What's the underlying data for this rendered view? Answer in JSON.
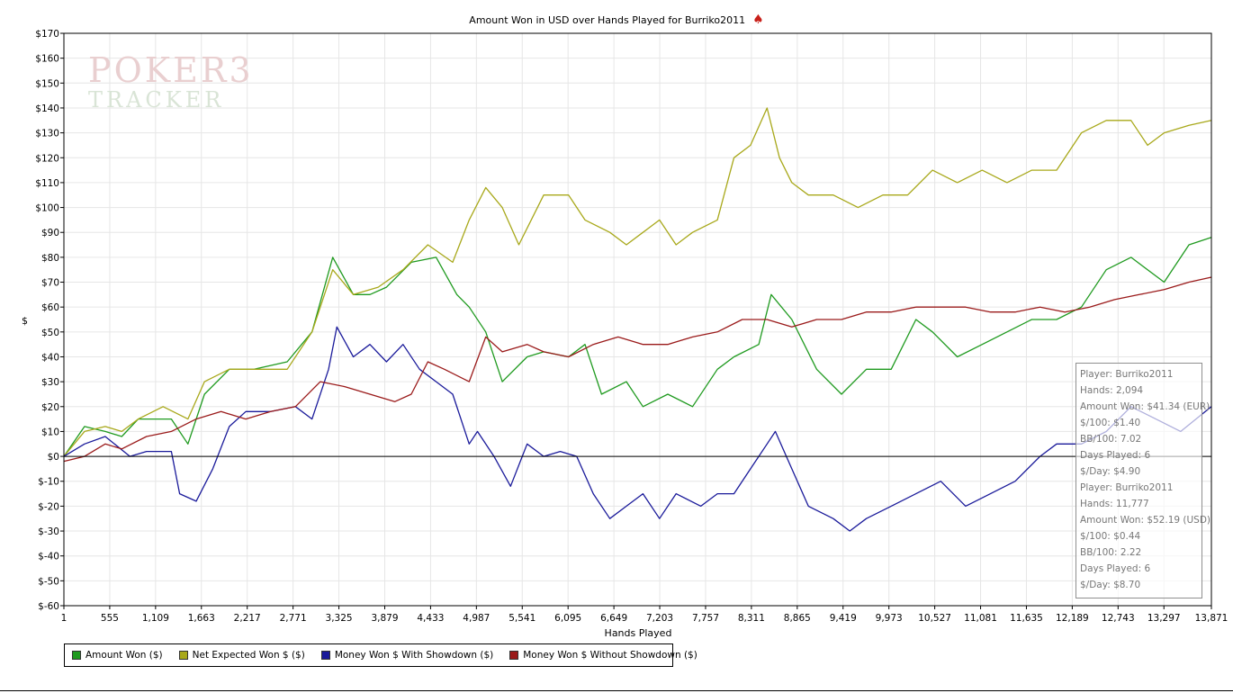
{
  "title": "Amount Won in USD over Hands Played for Burriko2011",
  "logo": {
    "line1": "POKER3",
    "line2": "TRACKER"
  },
  "chart_data": {
    "type": "line",
    "title": "Amount Won in USD over Hands Played for Burriko2011",
    "xlabel": "Hands Played",
    "ylabel": "$",
    "xlim": [
      1,
      13871
    ],
    "ylim": [
      -60,
      170
    ],
    "x_ticks": [
      1,
      555,
      1109,
      1663,
      2217,
      2771,
      3325,
      3879,
      4433,
      4987,
      5541,
      6095,
      6649,
      7203,
      7757,
      8311,
      8865,
      9419,
      9973,
      10527,
      11081,
      11635,
      12189,
      12743,
      13297,
      13871
    ],
    "x_tick_labels": [
      "1",
      "555",
      "1,109",
      "1,663",
      "2,217",
      "2,771",
      "3,325",
      "3,879",
      "4,433",
      "4,987",
      "5,541",
      "6,095",
      "6,649",
      "7,203",
      "7,757",
      "8,311",
      "8,865",
      "9,419",
      "9,973",
      "10,527",
      "11,081",
      "11,635",
      "12,189",
      "12,743",
      "13,297",
      "13,871"
    ],
    "y_ticks": [
      -60,
      -50,
      -40,
      -30,
      -20,
      -10,
      0,
      10,
      20,
      30,
      40,
      50,
      60,
      70,
      80,
      90,
      100,
      110,
      120,
      130,
      140,
      150,
      160,
      170
    ],
    "y_tick_labels": [
      "$-60",
      "$-50",
      "$-40",
      "$-30",
      "$-20",
      "$-10",
      "$0",
      "$10",
      "$20",
      "$30",
      "$40",
      "$50",
      "$60",
      "$70",
      "$80",
      "$90",
      "$100",
      "$110",
      "$120",
      "$130",
      "$140",
      "$150",
      "$160",
      "$170"
    ],
    "grid": true,
    "legend_position": "bottom-left",
    "series": [
      {
        "name": "Amount Won ($)",
        "color": "#1f9a1f",
        "x": [
          1,
          250,
          500,
          700,
          900,
          1300,
          1500,
          1700,
          2000,
          2300,
          2700,
          3000,
          3250,
          3500,
          3700,
          3900,
          4200,
          4500,
          4750,
          4900,
          5100,
          5300,
          5600,
          5800,
          6100,
          6300,
          6500,
          6800,
          7000,
          7300,
          7600,
          7900,
          8100,
          8400,
          8550,
          8800,
          9100,
          9400,
          9700,
          10000,
          10300,
          10500,
          10800,
          11100,
          11400,
          11700,
          12000,
          12300,
          12600,
          12900,
          13300,
          13600,
          13871
        ],
        "y": [
          0,
          12,
          10,
          8,
          15,
          15,
          5,
          25,
          35,
          35,
          38,
          50,
          80,
          65,
          65,
          68,
          78,
          80,
          65,
          60,
          50,
          30,
          40,
          42,
          40,
          45,
          25,
          30,
          20,
          25,
          20,
          35,
          40,
          45,
          65,
          55,
          35,
          25,
          35,
          35,
          55,
          50,
          40,
          45,
          50,
          55,
          55,
          60,
          75,
          80,
          70,
          85,
          88
        ]
      },
      {
        "name": "Net Expected Won $ ($)",
        "color": "#a8a81a",
        "x": [
          1,
          250,
          500,
          700,
          900,
          1200,
          1500,
          1700,
          2000,
          2300,
          2700,
          3000,
          3250,
          3500,
          3800,
          4100,
          4400,
          4700,
          4900,
          5100,
          5300,
          5500,
          5800,
          6100,
          6300,
          6600,
          6800,
          7000,
          7200,
          7400,
          7600,
          7900,
          8100,
          8300,
          8500,
          8650,
          8800,
          9000,
          9300,
          9600,
          9900,
          10200,
          10500,
          10800,
          11100,
          11400,
          11700,
          12000,
          12300,
          12600,
          12900,
          13100,
          13300,
          13600,
          13871
        ],
        "y": [
          0,
          10,
          12,
          10,
          15,
          20,
          15,
          30,
          35,
          35,
          35,
          50,
          75,
          65,
          68,
          75,
          85,
          78,
          95,
          108,
          100,
          85,
          105,
          105,
          95,
          90,
          85,
          90,
          95,
          85,
          90,
          95,
          120,
          125,
          140,
          120,
          110,
          105,
          105,
          100,
          105,
          105,
          115,
          110,
          115,
          110,
          115,
          115,
          130,
          135,
          135,
          125,
          130,
          133,
          135
        ]
      },
      {
        "name": "Money Won $ With Showdown ($)",
        "color": "#1a1a9a",
        "x": [
          1,
          250,
          500,
          800,
          1000,
          1300,
          1400,
          1600,
          1800,
          2000,
          2200,
          2500,
          2800,
          3000,
          3200,
          3300,
          3500,
          3700,
          3900,
          4100,
          4300,
          4500,
          4700,
          4900,
          5000,
          5200,
          5400,
          5600,
          5800,
          6000,
          6200,
          6400,
          6600,
          6800,
          7000,
          7200,
          7400,
          7700,
          7900,
          8100,
          8300,
          8500,
          8600,
          8800,
          9000,
          9300,
          9500,
          9700,
          10000,
          10300,
          10600,
          10900,
          11200,
          11500,
          11800,
          12000,
          12300,
          12600,
          12900,
          13200,
          13500,
          13871
        ],
        "y": [
          0,
          5,
          8,
          0,
          2,
          2,
          -15,
          -18,
          -5,
          12,
          18,
          18,
          20,
          15,
          35,
          52,
          40,
          45,
          38,
          45,
          35,
          30,
          25,
          5,
          10,
          0,
          -12,
          5,
          0,
          2,
          0,
          -15,
          -25,
          -20,
          -15,
          -25,
          -15,
          -20,
          -15,
          -15,
          -5,
          5,
          10,
          -5,
          -20,
          -25,
          -30,
          -25,
          -20,
          -15,
          -10,
          -20,
          -15,
          -10,
          0,
          5,
          5,
          10,
          20,
          15,
          10,
          20
        ]
      },
      {
        "name": "Money Won $ Without Showdown ($)",
        "color": "#9a1a1a",
        "x": [
          1,
          250,
          500,
          700,
          1000,
          1300,
          1600,
          1900,
          2200,
          2500,
          2800,
          3100,
          3400,
          3700,
          4000,
          4200,
          4400,
          4600,
          4900,
          5100,
          5300,
          5600,
          5800,
          6100,
          6400,
          6700,
          7000,
          7300,
          7600,
          7900,
          8200,
          8500,
          8800,
          9100,
          9400,
          9700,
          10000,
          10300,
          10600,
          10900,
          11200,
          11500,
          11800,
          12100,
          12400,
          12700,
          13000,
          13300,
          13600,
          13871
        ],
        "y": [
          -2,
          0,
          5,
          3,
          8,
          10,
          15,
          18,
          15,
          18,
          20,
          30,
          28,
          25,
          22,
          25,
          38,
          35,
          30,
          48,
          42,
          45,
          42,
          40,
          45,
          48,
          45,
          45,
          48,
          50,
          55,
          55,
          52,
          55,
          55,
          58,
          58,
          60,
          60,
          60,
          58,
          58,
          60,
          58,
          60,
          63,
          65,
          67,
          70,
          72
        ]
      }
    ]
  },
  "legend": [
    {
      "label": "Amount Won ($)",
      "color": "#1f9a1f"
    },
    {
      "label": "Net Expected Won $ ($)",
      "color": "#a8a81a"
    },
    {
      "label": "Money Won $ With Showdown ($)",
      "color": "#1a1a9a"
    },
    {
      "label": "Money Won $ Without Showdown ($)",
      "color": "#9a1a1a"
    }
  ],
  "info_box": {
    "lines": [
      "Player: Burriko2011",
      "Hands: 2,094",
      "Amount Won: $41.34 (EUR)",
      "$/100: $1.40",
      "BB/100: 7.02",
      "Days Played: 6",
      "$/Day: $4.90",
      "Player: Burriko2011",
      "Hands: 11,777",
      "Amount Won: $52.19 (USD)",
      "$/100: $0.44",
      "BB/100: 2.22",
      "Days Played: 6",
      "$/Day: $8.70"
    ]
  }
}
